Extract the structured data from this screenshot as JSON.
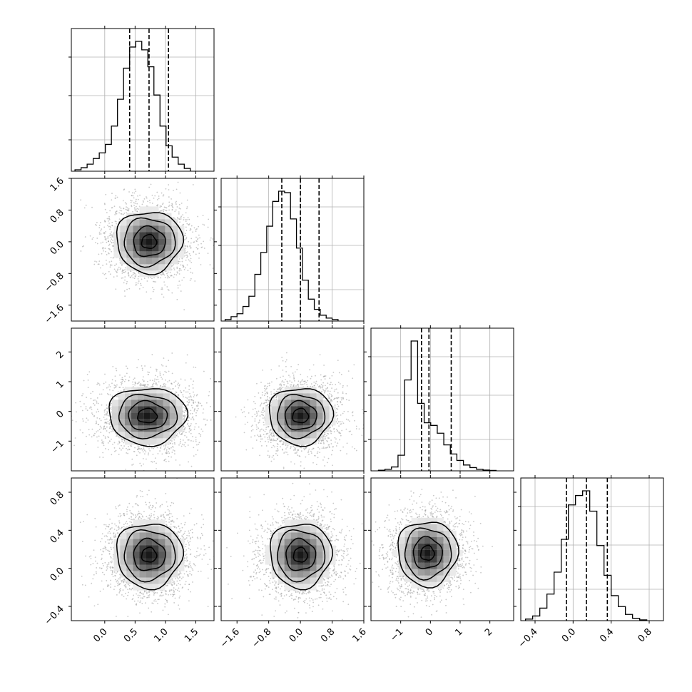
{
  "chart_data": {
    "type": "corner",
    "ndim": 4,
    "grid": true,
    "quantiles": [
      0.16,
      0.5,
      0.84
    ],
    "params": [
      {
        "range": [
          -0.55,
          1.8
        ],
        "ticks": [
          0.0,
          0.5,
          1.0,
          1.5
        ],
        "tick_labels": [
          "0.0",
          "0.5",
          "1.0",
          "1.5"
        ],
        "quantile_values": [
          0.41,
          0.73,
          1.05
        ],
        "bin_start": -0.49,
        "bin_width": 0.1,
        "hist": [
          10,
          25,
          50,
          90,
          130,
          190,
          320,
          510,
          730,
          880,
          920,
          860,
          740,
          540,
          320,
          180,
          100,
          50,
          20
        ]
      },
      {
        "range": [
          -2.0,
          1.6
        ],
        "ticks": [
          -1.6,
          -0.8,
          0.0,
          0.8,
          1.6
        ],
        "tick_labels": [
          "−1.6",
          "−0.8",
          "0.0",
          "0.8",
          "1.6"
        ],
        "quantile_values": [
          -0.47,
          0.0,
          0.47
        ],
        "bin_start": -1.9,
        "bin_width": 0.15,
        "hist": [
          10,
          30,
          50,
          100,
          170,
          320,
          470,
          650,
          820,
          890,
          880,
          700,
          500,
          280,
          150,
          80,
          40,
          20,
          10
        ]
      },
      {
        "range": [
          -2.0,
          2.8
        ],
        "ticks": [
          -1,
          0,
          1,
          2
        ],
        "tick_labels": [
          "−1",
          "0",
          "1",
          "2"
        ],
        "quantile_values": [
          -0.3,
          -0.05,
          0.7
        ],
        "bin_start": -1.75,
        "bin_width": 0.22,
        "hist": [
          5,
          12,
          30,
          120,
          700,
          1000,
          520,
          370,
          350,
          290,
          200,
          130,
          80,
          45,
          25,
          12,
          6,
          3
        ]
      },
      {
        "range": [
          -0.55,
          0.95
        ],
        "ticks": [
          -0.4,
          0.0,
          0.4,
          0.8
        ],
        "tick_labels": [
          "−0.4",
          "0.0",
          "0.4",
          "0.8"
        ],
        "quantile_values": [
          -0.07,
          0.14,
          0.36
        ],
        "bin_start": -0.5,
        "bin_width": 0.075,
        "hist": [
          10,
          30,
          80,
          170,
          310,
          520,
          740,
          800,
          830,
          700,
          480,
          290,
          160,
          90,
          40,
          15,
          5
        ]
      }
    ],
    "pairs": [
      {
        "x": 0,
        "y": 1,
        "center": [
          0.73,
          0.0
        ],
        "sigma": [
          0.35,
          0.5
        ],
        "points": 2500,
        "contour_radii": [
          0.35,
          0.75,
          1.2,
          1.55
        ]
      },
      {
        "x": 0,
        "y": 2,
        "center": [
          0.7,
          -0.15
        ],
        "sigma": [
          0.4,
          0.6
        ],
        "points": 2500,
        "contour_radii": [
          0.4,
          0.8,
          1.2,
          1.6
        ]
      },
      {
        "x": 1,
        "y": 2,
        "center": [
          0.0,
          -0.15
        ],
        "sigma": [
          0.5,
          0.6
        ],
        "points": 2500,
        "contour_radii": [
          0.4,
          0.8,
          1.2,
          1.6
        ]
      },
      {
        "x": 0,
        "y": 3,
        "center": [
          0.73,
          0.14
        ],
        "sigma": [
          0.35,
          0.22
        ],
        "points": 2500,
        "contour_radii": [
          0.35,
          0.75,
          1.2,
          1.55
        ]
      },
      {
        "x": 1,
        "y": 3,
        "center": [
          0.0,
          0.14
        ],
        "sigma": [
          0.5,
          0.22
        ],
        "points": 2500,
        "contour_radii": [
          0.35,
          0.75,
          1.2,
          1.55
        ]
      },
      {
        "x": 2,
        "y": 3,
        "center": [
          -0.1,
          0.16
        ],
        "sigma": [
          0.65,
          0.22
        ],
        "points": 2500,
        "contour_radii": [
          0.35,
          0.75,
          1.2,
          1.55
        ]
      }
    ],
    "colors": {
      "line": "#000000",
      "scatter": "#9a9a9a",
      "grid": "#b0b0b0",
      "density_low": "#ffffff",
      "density_high": "#000000"
    }
  }
}
